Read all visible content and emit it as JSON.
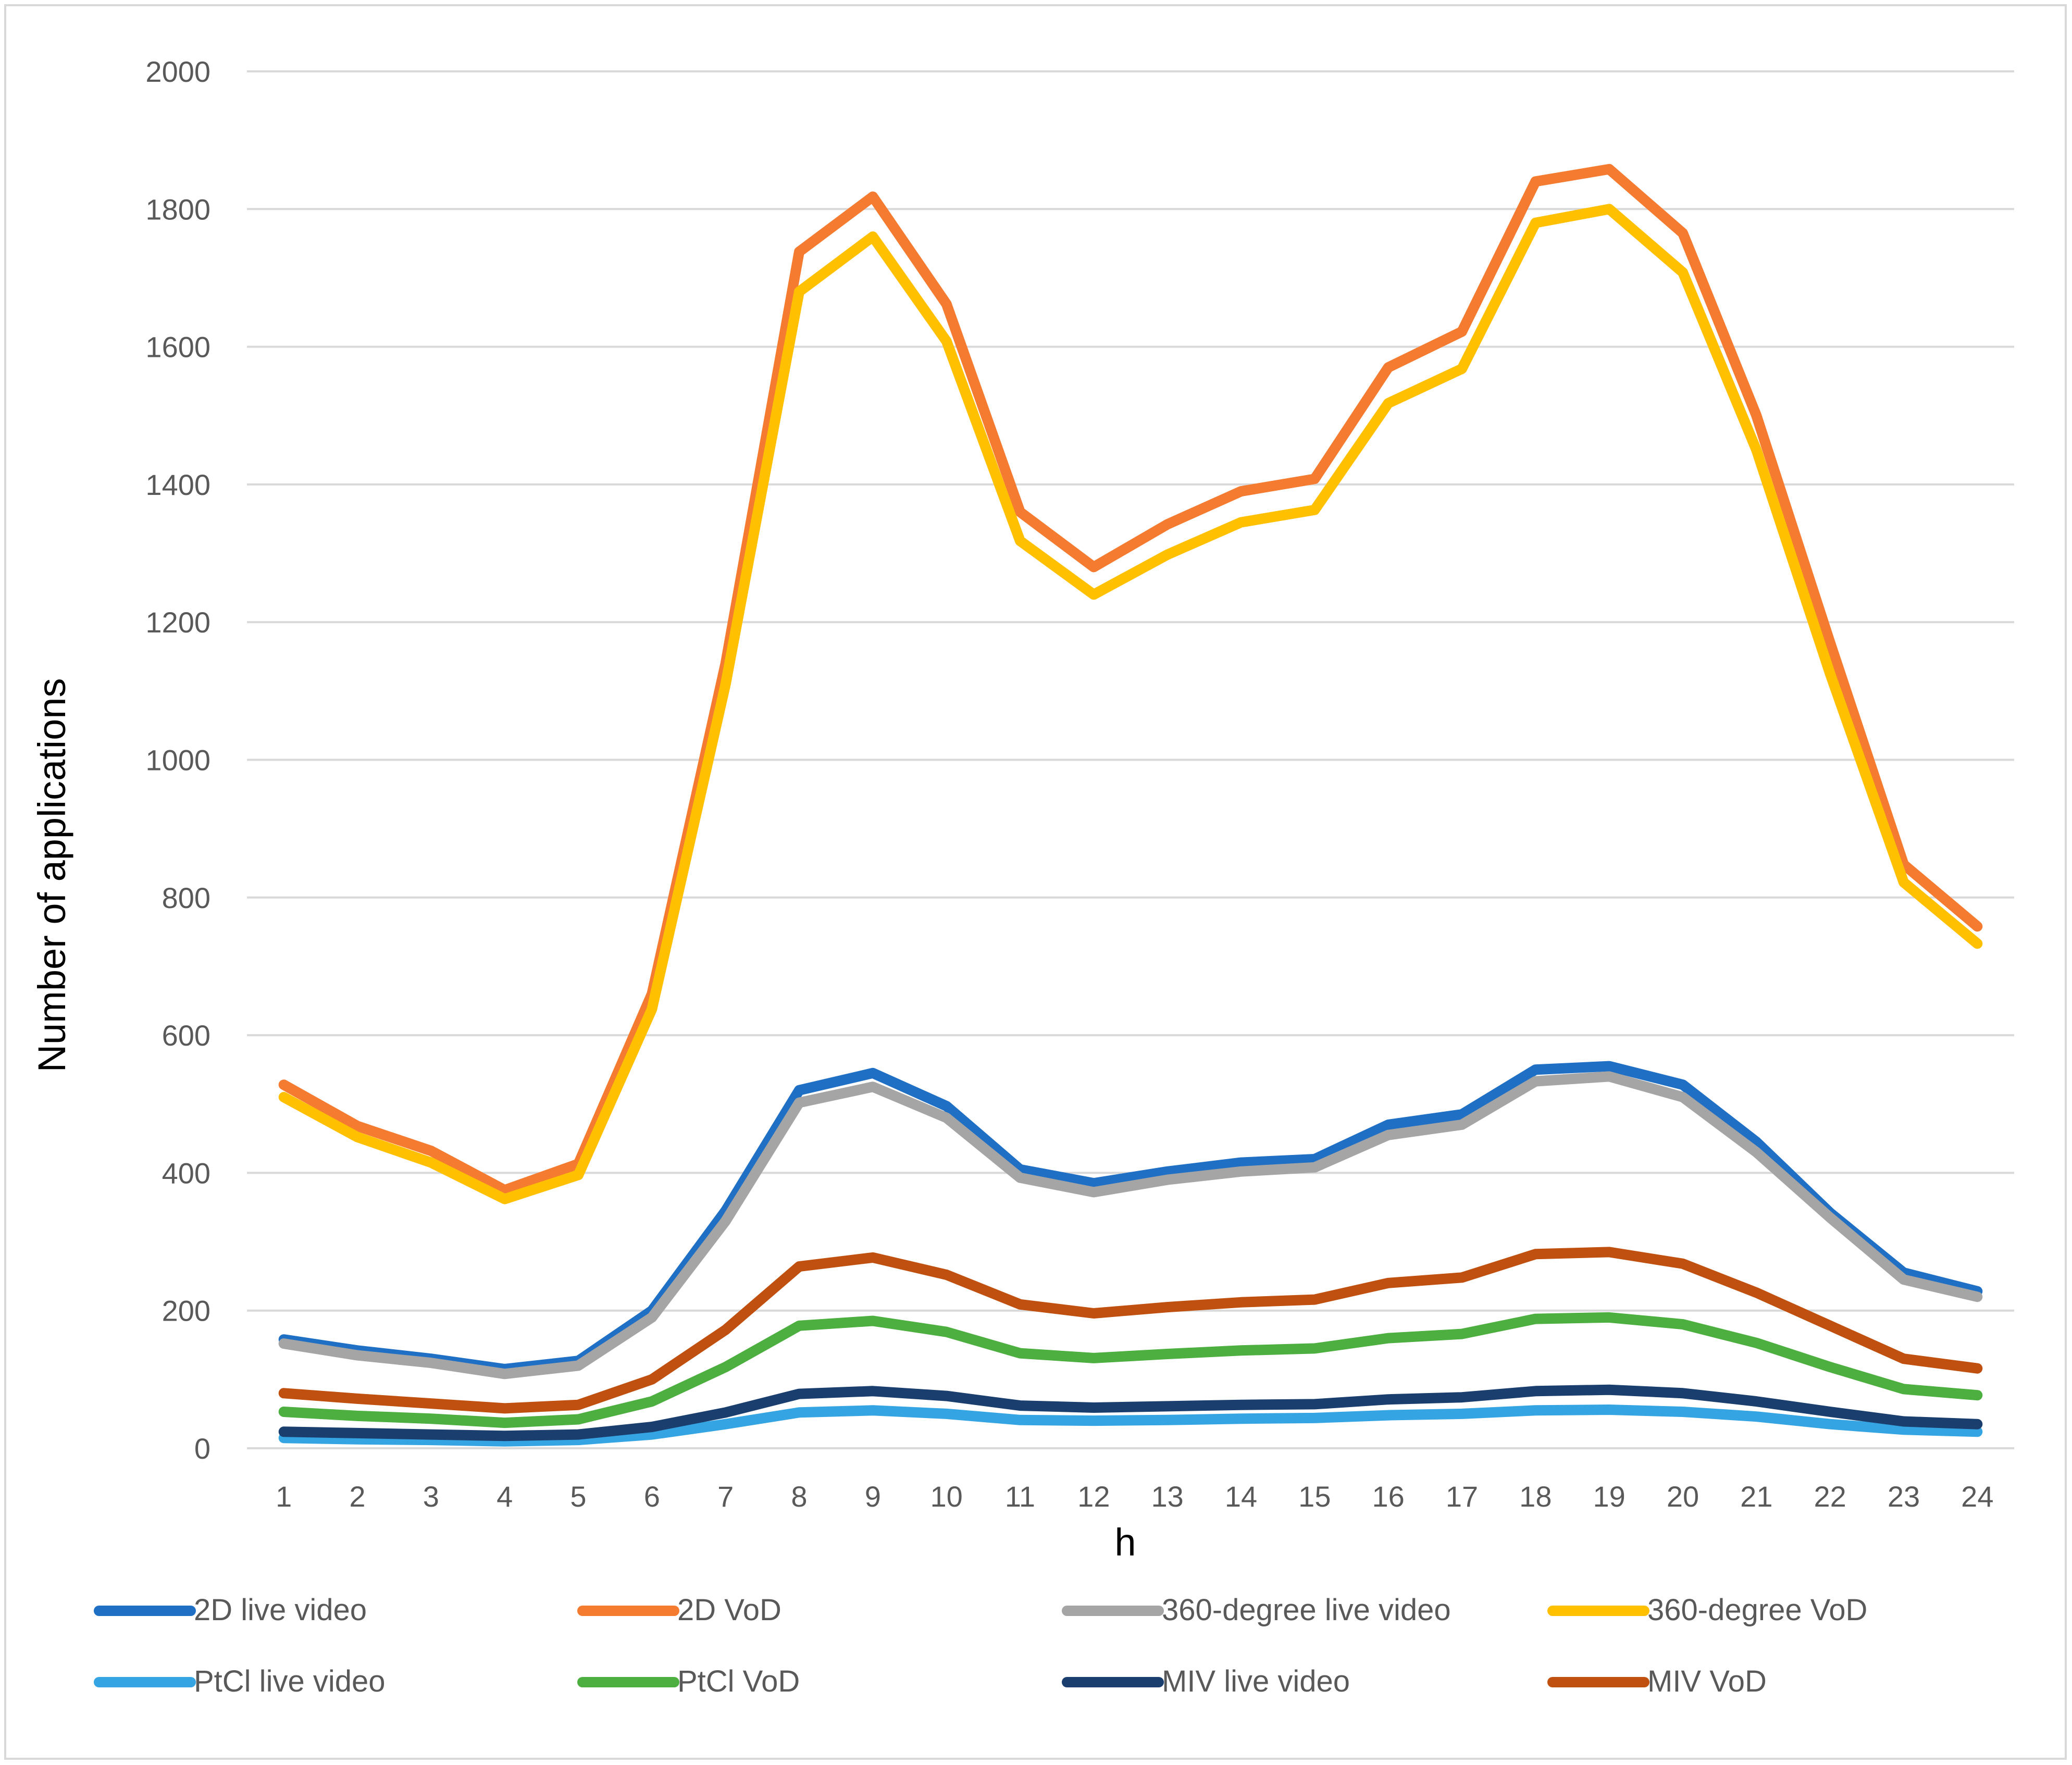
{
  "chart_data": {
    "type": "line",
    "title": "",
    "xlabel": "h",
    "ylabel": "Number of applications",
    "ylim": [
      0,
      2000
    ],
    "y_ticks": [
      "0",
      "200",
      "400",
      "600",
      "800",
      "1000",
      "1200",
      "1400",
      "1600",
      "1800",
      "2000"
    ],
    "y_tick_values": [
      0,
      200,
      400,
      600,
      800,
      1000,
      1200,
      1400,
      1600,
      1800,
      2000
    ],
    "categories": [
      "1",
      "2",
      "3",
      "4",
      "5",
      "6",
      "7",
      "8",
      "9",
      "10",
      "11",
      "12",
      "13",
      "14",
      "15",
      "16",
      "17",
      "18",
      "19",
      "20",
      "21",
      "22",
      "23",
      "24"
    ],
    "grid": true,
    "legend_position": "bottom",
    "series": [
      {
        "name": "2D live video",
        "color": "#1F6FC5",
        "values": [
          158,
          142,
          130,
          115,
          127,
          200,
          345,
          520,
          545,
          497,
          405,
          385,
          402,
          415,
          420,
          470,
          485,
          550,
          555,
          528,
          445,
          342,
          255,
          228
        ]
      },
      {
        "name": "2D VoD",
        "color": "#F47B2F",
        "values": [
          528,
          468,
          432,
          375,
          413,
          660,
          1140,
          1738,
          1818,
          1662,
          1360,
          1280,
          1342,
          1390,
          1408,
          1570,
          1622,
          1840,
          1858,
          1765,
          1500,
          1170,
          848,
          758
        ]
      },
      {
        "name": "360-degree live video",
        "color": "#A5A5A5",
        "values": [
          152,
          135,
          124,
          108,
          120,
          190,
          330,
          502,
          525,
          480,
          393,
          372,
          390,
          402,
          408,
          455,
          470,
          533,
          540,
          510,
          430,
          335,
          245,
          220
        ]
      },
      {
        "name": "360-degree VoD",
        "color": "#FFC000",
        "values": [
          510,
          452,
          415,
          362,
          397,
          638,
          1110,
          1680,
          1760,
          1608,
          1318,
          1240,
          1298,
          1345,
          1363,
          1518,
          1568,
          1780,
          1800,
          1708,
          1450,
          1125,
          822,
          733
        ]
      },
      {
        "name": "PtCl live video",
        "color": "#35A4E2",
        "values": [
          15,
          13,
          12,
          10,
          12,
          20,
          35,
          52,
          55,
          50,
          41,
          40,
          41,
          43,
          44,
          48,
          50,
          55,
          56,
          53,
          46,
          35,
          27,
          24
        ]
      },
      {
        "name": "PtCl VoD",
        "color": "#4CAF3F",
        "values": [
          53,
          47,
          43,
          37,
          42,
          68,
          118,
          178,
          185,
          169,
          138,
          131,
          137,
          142,
          145,
          160,
          166,
          188,
          190,
          180,
          153,
          118,
          86,
          77
        ]
      },
      {
        "name": "MIV live video",
        "color": "#1A3E6E",
        "values": [
          24,
          22,
          20,
          18,
          20,
          31,
          52,
          79,
          83,
          76,
          62,
          59,
          61,
          63,
          64,
          71,
          74,
          83,
          85,
          80,
          68,
          53,
          39,
          35
        ]
      },
      {
        "name": "MIV VoD",
        "color": "#C0500F",
        "values": [
          80,
          72,
          65,
          58,
          63,
          100,
          172,
          264,
          277,
          252,
          209,
          196,
          205,
          212,
          216,
          240,
          248,
          282,
          285,
          268,
          226,
          178,
          130,
          116
        ]
      }
    ]
  }
}
